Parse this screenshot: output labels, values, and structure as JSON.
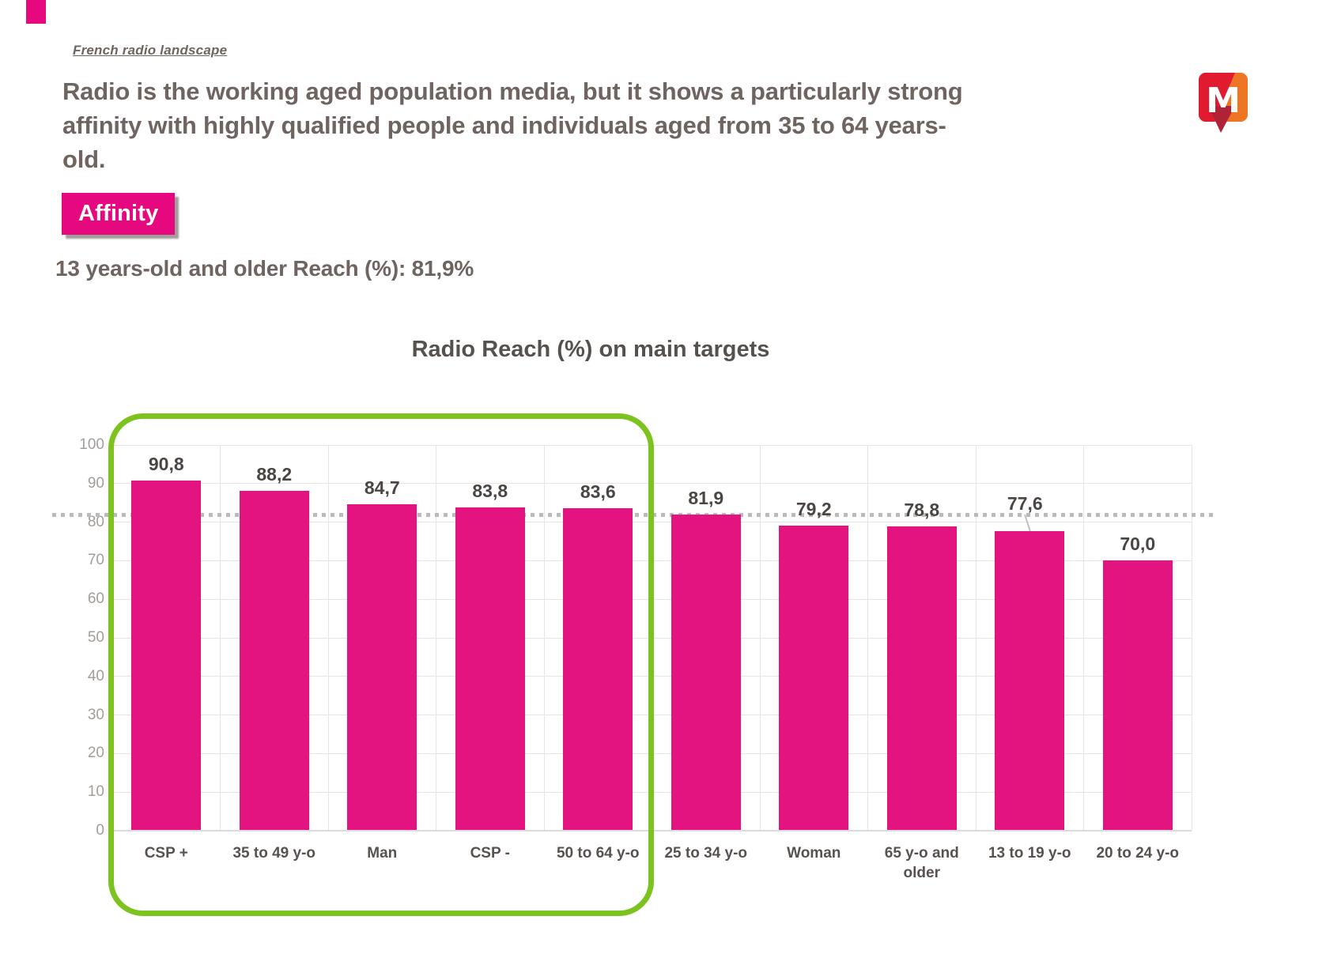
{
  "header": {
    "breadcrumb": "French radio landscape",
    "title_lines": [
      "Radio is the working aged population media, but it shows a particularly strong",
      "affinity with highly qualified people and individuals aged from 35 to 64 years-",
      "old."
    ],
    "badge": "Affinity",
    "subtitle": "13 years-old and older Reach (%): 81,9%"
  },
  "logo": {
    "letter": "M",
    "red": "#E01B2F",
    "orange": "#ED7523",
    "arrow_red": "#B02336"
  },
  "chart_data": {
    "type": "bar",
    "title": "Radio Reach (%) on main targets",
    "categories": [
      "CSP +",
      "35 to 49 y-o",
      "Man",
      "CSP -",
      "50 to 64 y-o",
      "25 to 34 y-o",
      "Woman",
      "65 y-o and older",
      "13 to 19 y-o",
      "20 to 24 y-o"
    ],
    "values": [
      90.8,
      88.2,
      84.7,
      83.8,
      83.6,
      81.9,
      79.2,
      78.8,
      77.6,
      70.0
    ],
    "value_labels": [
      "90,8",
      "88,2",
      "84,7",
      "83,8",
      "83,6",
      "81,9",
      "79,2",
      "78,8",
      "77,6",
      "70,0"
    ],
    "ylim": [
      0,
      100
    ],
    "yticks": [
      0,
      10,
      20,
      30,
      40,
      50,
      60,
      70,
      80,
      90,
      100
    ],
    "grid": "both",
    "legend": "none",
    "bar_color": "#E31380",
    "reference_line": {
      "value": 81.9,
      "style": "dotted",
      "color": "#BBBBBB"
    },
    "highlight": {
      "first_n": 5,
      "color": "#7CC320"
    },
    "label_overrides": {
      "8": {
        "dx": -6,
        "dy": -14,
        "leader": true
      }
    }
  },
  "colors": {
    "accent_pink": "#E5087E",
    "highlight_green": "#7CC320",
    "header_text": "#6F6460",
    "chart_title_text": "#57514E",
    "value_label_text": "#4B4643",
    "category_text": "#57524F",
    "tick_text": "#A39D9A",
    "gridline": "#E6E4E5",
    "reference_gray": "#BBBBBB"
  }
}
